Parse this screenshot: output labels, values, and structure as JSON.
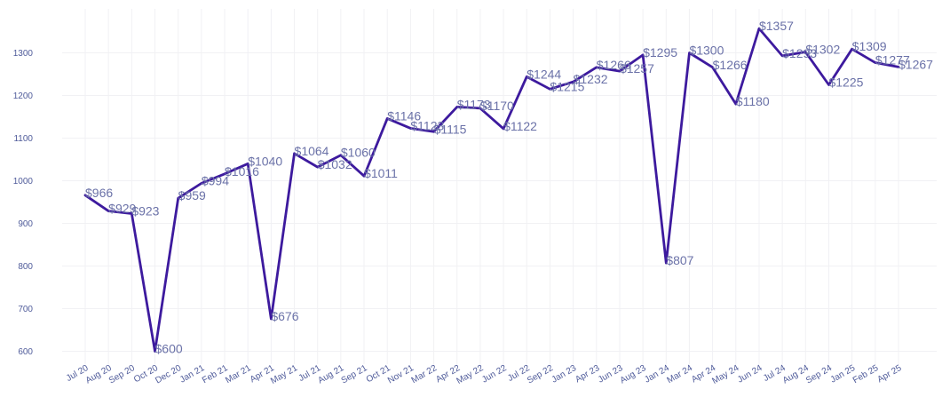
{
  "chart_data": {
    "type": "line",
    "title": "",
    "xlabel": "",
    "ylabel": "",
    "ylim": [
      560,
      1380
    ],
    "yticks": [
      600,
      700,
      800,
      900,
      1000,
      1100,
      1200,
      1300
    ],
    "grid": true,
    "color": "#3d1a9e",
    "label_color": "#6b72a8",
    "currency_prefix": "$",
    "categories": [
      "Jul 20",
      "Aug 20",
      "Sep 20",
      "Oct 20",
      "Dec 20",
      "Jan 21",
      "Feb 21",
      "Mar 21",
      "Apr 21",
      "May 21",
      "Jul 21",
      "Aug 21",
      "Sep 21",
      "Oct 21",
      "Nov 21",
      "Mar 22",
      "Apr 22",
      "May 22",
      "Jun 22",
      "Jul 22",
      "Sep 22",
      "Jan 23",
      "Apr 23",
      "Jun 23",
      "Aug 23",
      "Jan 24",
      "Mar 24",
      "Apr 24",
      "May 24",
      "Jun 24",
      "Jul 24",
      "Aug 24",
      "Sep 24",
      "Jan 25",
      "Feb 25",
      "Apr 25"
    ],
    "values": [
      966,
      929,
      923,
      600,
      959,
      994,
      1016,
      1040,
      676,
      1064,
      1032,
      1060,
      1011,
      1146,
      1123,
      1115,
      1173,
      1170,
      1122,
      1244,
      1215,
      1232,
      1266,
      1257,
      1295,
      807,
      1300,
      1266,
      1180,
      1357,
      1293,
      1302,
      1225,
      1309,
      1277,
      1267
    ]
  }
}
